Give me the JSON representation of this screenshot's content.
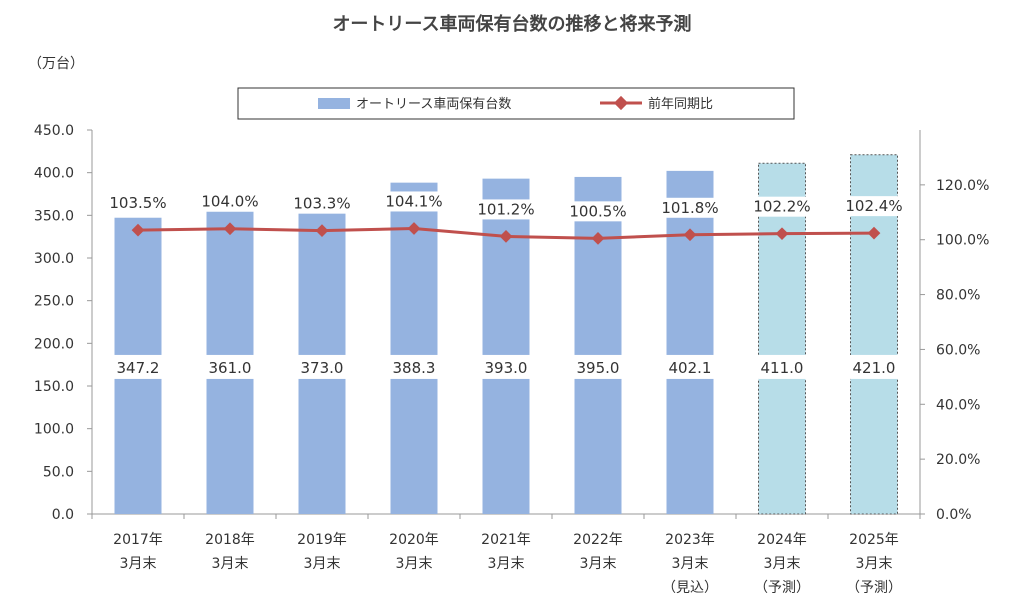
{
  "chart_data": {
    "type": "bar",
    "title": "オートリース車両保有台数の推移と将来予測",
    "y_unit": "（万台）",
    "categories": [
      [
        "2017年",
        "3月末"
      ],
      [
        "2018年",
        "3月末"
      ],
      [
        "2019年",
        "3月末"
      ],
      [
        "2020年",
        "3月末"
      ],
      [
        "2021年",
        "3月末"
      ],
      [
        "2022年",
        "3月末"
      ],
      [
        "2023年",
        "3月末",
        "（見込）"
      ],
      [
        "2024年",
        "3月末",
        "（予測）"
      ],
      [
        "2025年",
        "3月末",
        "（予測）"
      ]
    ],
    "series": [
      {
        "name": "オートリース車両保有台数",
        "type": "bar",
        "axis": "left",
        "values": [
          347.2,
          361.0,
          373.0,
          388.3,
          393.0,
          395.0,
          402.1,
          411.0,
          421.0
        ],
        "labels": [
          "347.2",
          "361.0",
          "373.0",
          "388.3",
          "393.0",
          "395.0",
          "402.1",
          "411.0",
          "421.0"
        ],
        "forecast": [
          false,
          false,
          false,
          false,
          false,
          false,
          false,
          true,
          true
        ]
      },
      {
        "name": "前年同期比",
        "type": "line",
        "axis": "right",
        "values": [
          103.5,
          104.0,
          103.3,
          104.1,
          101.2,
          100.5,
          101.8,
          102.2,
          102.4
        ],
        "labels": [
          "103.5%",
          "104.0%",
          "103.3%",
          "104.1%",
          "101.2%",
          "100.5%",
          "101.8%",
          "102.2%",
          "102.4%"
        ]
      }
    ],
    "y_left": {
      "range": [
        0,
        450
      ],
      "ticks": [
        "0.0",
        "50.0",
        "100.0",
        "150.0",
        "200.0",
        "250.0",
        "300.0",
        "350.0",
        "400.0",
        "450.0"
      ]
    },
    "y_right": {
      "range": [
        0,
        140
      ],
      "ticks": [
        "0.0%",
        "20.0%",
        "40.0%",
        "60.0%",
        "80.0%",
        "100.0%",
        "120.0%"
      ]
    },
    "legend_position": "top-center",
    "grid": false,
    "colors": {
      "bar": "#95b3e0",
      "bar_forecast": "#b7dde8",
      "line": "#c0504d"
    }
  }
}
